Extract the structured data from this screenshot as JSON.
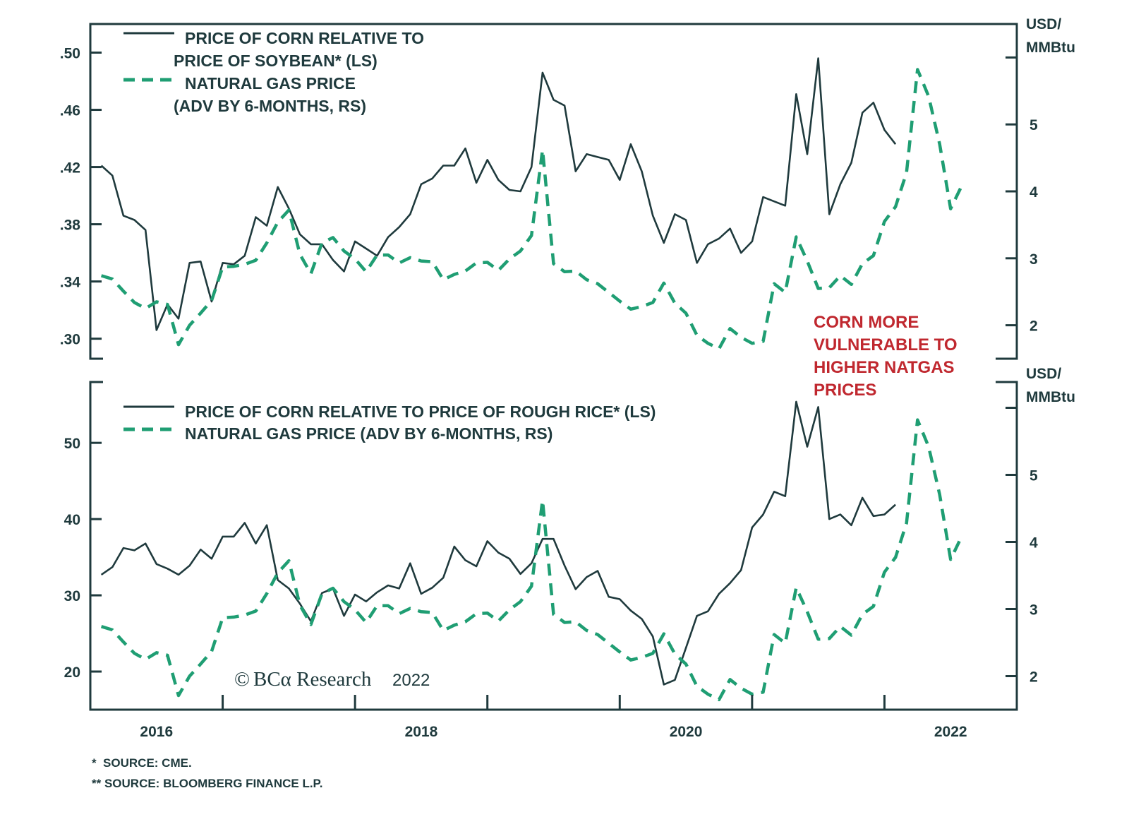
{
  "colors": {
    "corn_line": "#1f3a3d",
    "gas_line": "#1f9e73",
    "annotation": "#c0282f",
    "axis": "#1f3a3d"
  },
  "chart_data": [
    {
      "type": "line",
      "panel": "top",
      "legend": [
        {
          "lines": [
            "PRICE OF CORN RELATIVE TO",
            "PRICE OF SOYBEAN* (LS)"
          ],
          "style": "solid"
        },
        {
          "lines": [
            "NATURAL GAS PRICE",
            "(ADV BY 6-MONTHS, RS)"
          ],
          "style": "dashed"
        }
      ],
      "legend_position": "top-left",
      "left_axis": {
        "ticks": [
          ".50",
          ".46",
          ".42",
          ".38",
          ".34",
          ".30"
        ],
        "tick_values": [
          0.5,
          0.46,
          0.42,
          0.38,
          0.34,
          0.3
        ],
        "range": [
          0.286,
          0.52
        ]
      },
      "right_axis": {
        "label": [
          "USD/",
          "MMBtu"
        ],
        "ticks": [
          "",
          "5",
          "4",
          "3",
          "2"
        ],
        "tick_values": [
          6,
          5,
          4,
          3,
          2
        ],
        "range": [
          1.5,
          6.5
        ]
      },
      "x_start": "2016-02",
      "series": [
        {
          "name": "Price of corn relative to price of soybean (LS)",
          "axis": "left",
          "style": "solid",
          "values": [
            0.421,
            0.414,
            0.386,
            0.383,
            0.376,
            0.306,
            0.324,
            0.314,
            0.353,
            0.354,
            0.326,
            0.353,
            0.352,
            0.358,
            0.385,
            0.379,
            0.406,
            0.391,
            0.373,
            0.366,
            0.366,
            0.355,
            0.347,
            0.368,
            0.363,
            0.358,
            0.371,
            0.378,
            0.387,
            0.408,
            0.412,
            0.421,
            0.421,
            0.433,
            0.409,
            0.425,
            0.411,
            0.404,
            0.403,
            0.42,
            0.486,
            0.467,
            0.463,
            0.417,
            0.429,
            0.427,
            0.425,
            0.411,
            0.436,
            0.417,
            0.386,
            0.367,
            0.387,
            0.383,
            0.353,
            0.366,
            0.37,
            0.377,
            0.36,
            0.368,
            0.399,
            0.396,
            0.393,
            0.471,
            0.429,
            0.496,
            0.387,
            0.408,
            0.423,
            0.458,
            0.465,
            0.446,
            0.436
          ]
        },
        {
          "name": "Natural gas price (adv by 6-months, RS)",
          "axis": "right",
          "style": "dashed",
          "values": [
            2.74,
            2.69,
            2.51,
            2.34,
            2.25,
            2.35,
            2.31,
            1.71,
            2.0,
            2.18,
            2.37,
            2.87,
            2.88,
            2.91,
            2.97,
            3.23,
            3.54,
            3.72,
            3.06,
            2.77,
            3.23,
            3.31,
            3.11,
            2.99,
            2.8,
            3.05,
            3.05,
            2.93,
            3.01,
            2.96,
            2.95,
            2.68,
            2.76,
            2.81,
            2.93,
            2.94,
            2.82,
            2.99,
            3.11,
            3.34,
            4.62,
            2.92,
            2.8,
            2.81,
            2.68,
            2.62,
            2.49,
            2.36,
            2.24,
            2.28,
            2.34,
            2.63,
            2.33,
            2.18,
            1.85,
            1.73,
            1.65,
            1.95,
            1.82,
            1.73,
            1.76,
            2.62,
            2.49,
            3.32,
            2.96,
            2.55,
            2.56,
            2.74,
            2.61,
            2.92,
            3.04,
            3.55,
            3.77,
            4.28,
            5.82,
            5.42,
            4.71,
            3.74,
            4.08
          ]
        }
      ]
    },
    {
      "type": "line",
      "panel": "bottom",
      "legend": [
        {
          "lines": [
            "PRICE OF CORN RELATIVE TO PRICE OF ROUGH RICE* (LS)"
          ],
          "style": "solid"
        },
        {
          "lines": [
            "NATURAL GAS PRICE (ADV BY 6-MONTHS, RS)"
          ],
          "style": "dashed"
        }
      ],
      "legend_position": "top-left",
      "left_axis": {
        "ticks": [
          "50",
          "40",
          "30",
          "20"
        ],
        "tick_values": [
          50,
          40,
          30,
          20
        ],
        "range": [
          15,
          59
        ]
      },
      "right_axis": {
        "label": [
          "USD/",
          "MMBtu"
        ],
        "ticks": [
          "",
          "5",
          "4",
          "3",
          "2"
        ],
        "tick_values": [
          6,
          5,
          4,
          3,
          2
        ],
        "range": [
          1.5,
          6.5
        ]
      },
      "x_start": "2016-02",
      "series": [
        {
          "name": "Price of corn relative to price of rough rice (LS)",
          "axis": "left",
          "style": "solid",
          "values": [
            32.7,
            33.7,
            36.2,
            35.9,
            36.8,
            34.1,
            33.5,
            32.7,
            33.9,
            36.0,
            34.8,
            37.7,
            37.7,
            39.5,
            36.8,
            39.2,
            32.0,
            30.9,
            28.9,
            26.6,
            30.3,
            30.9,
            27.3,
            30.1,
            29.2,
            30.4,
            31.3,
            30.9,
            34.2,
            30.2,
            31.0,
            32.3,
            36.4,
            34.6,
            33.8,
            37.1,
            35.6,
            34.8,
            32.8,
            34.2,
            37.4,
            37.4,
            33.9,
            30.8,
            32.4,
            33.2,
            29.8,
            29.5,
            28.0,
            26.9,
            24.6,
            18.3,
            18.9,
            23.1,
            27.3,
            27.9,
            30.2,
            31.6,
            33.3,
            38.9,
            40.6,
            43.6,
            43.0,
            55.4,
            49.5,
            54.7,
            40.0,
            40.6,
            39.2,
            42.8,
            40.4,
            40.6,
            41.9
          ]
        },
        {
          "name": "Natural gas price (adv by 6-months, RS)",
          "axis": "right",
          "style": "dashed",
          "values": [
            2.74,
            2.69,
            2.51,
            2.34,
            2.25,
            2.35,
            2.31,
            1.71,
            2.0,
            2.18,
            2.37,
            2.87,
            2.88,
            2.91,
            2.97,
            3.23,
            3.54,
            3.72,
            3.06,
            2.77,
            3.23,
            3.31,
            3.11,
            2.99,
            2.8,
            3.05,
            3.05,
            2.93,
            3.01,
            2.96,
            2.95,
            2.68,
            2.76,
            2.81,
            2.93,
            2.94,
            2.82,
            2.99,
            3.11,
            3.34,
            4.62,
            2.92,
            2.8,
            2.81,
            2.68,
            2.62,
            2.49,
            2.36,
            2.24,
            2.28,
            2.34,
            2.63,
            2.33,
            2.18,
            1.85,
            1.73,
            1.65,
            1.95,
            1.82,
            1.73,
            1.76,
            2.62,
            2.49,
            3.32,
            2.96,
            2.55,
            2.56,
            2.74,
            2.61,
            2.92,
            3.04,
            3.55,
            3.77,
            4.28,
            5.82,
            5.42,
            4.71,
            3.74,
            4.08
          ]
        }
      ]
    }
  ],
  "x_axis": {
    "tick_labels": [
      "2016",
      "2018",
      "2020",
      "2022"
    ],
    "label_years": [
      2016,
      2018,
      2020,
      2022
    ],
    "range": [
      2016.0,
      2023.0
    ]
  },
  "annotation": {
    "lines": [
      "CORN MORE",
      "VULNERABLE TO",
      "HIGHER NATGAS",
      "PRICES"
    ]
  },
  "watermark": {
    "copyright": "©",
    "brand": "BCα Research",
    "year": "2022"
  },
  "footnotes": [
    "*  SOURCE: CME.",
    "** SOURCE: BLOOMBERG FINANCE L.P."
  ]
}
